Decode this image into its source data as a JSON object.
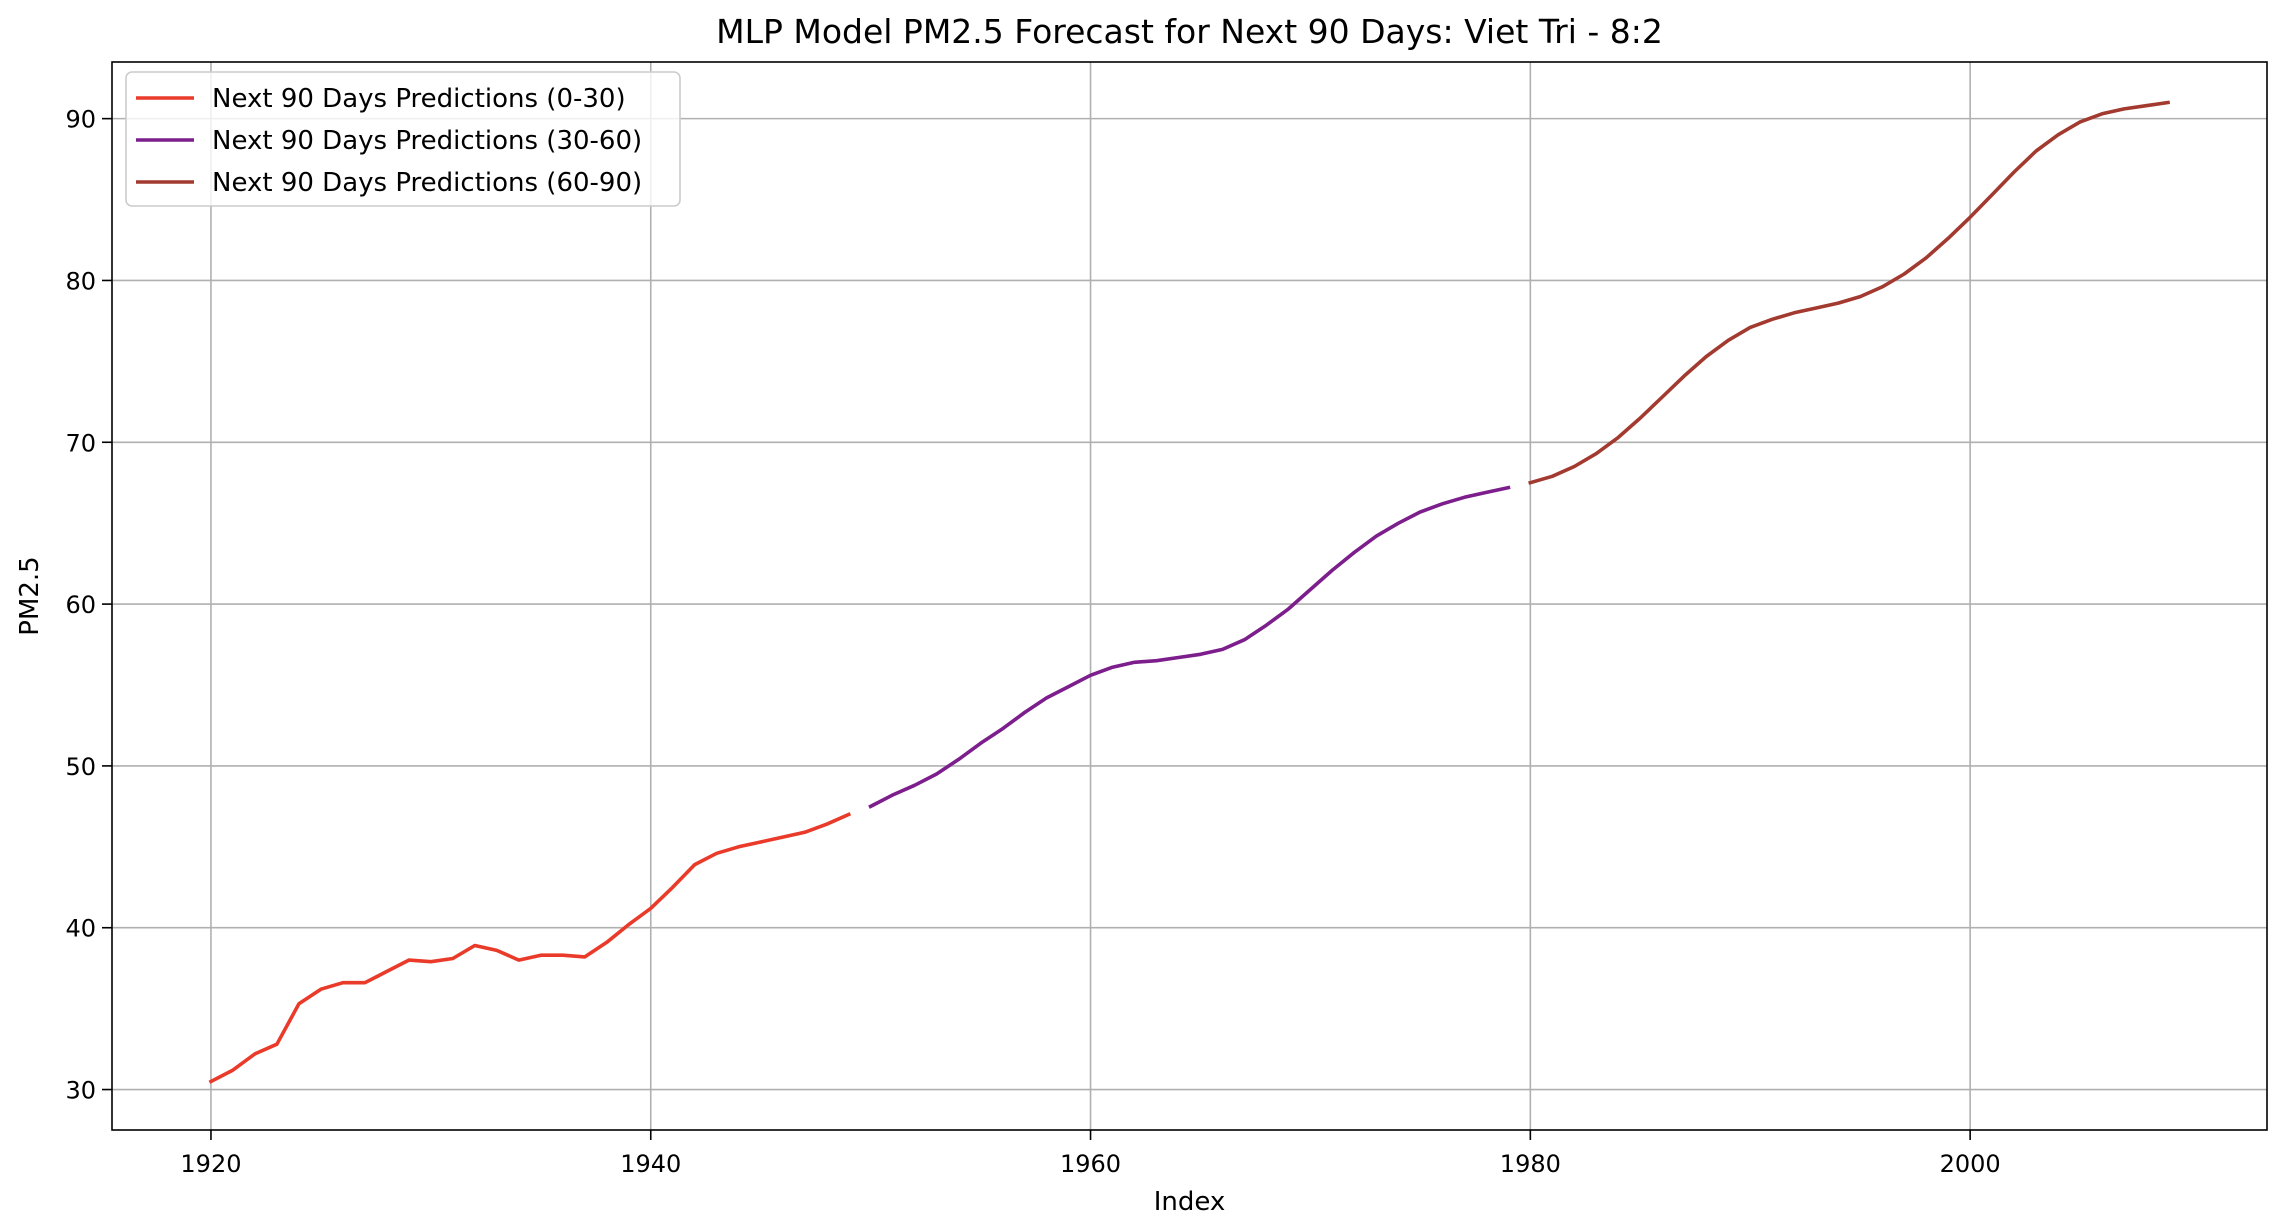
{
  "chart_data": {
    "type": "line",
    "title": "MLP Model PM2.5 Forecast for Next 90 Days: Viet Tri - 8:2",
    "xlabel": "Index",
    "ylabel": "PM2.5",
    "xlim": [
      1915.5,
      2013.5
    ],
    "ylim": [
      27.5,
      93.5
    ],
    "xticks": [
      1920,
      1940,
      1960,
      1980,
      2000
    ],
    "yticks": [
      30,
      40,
      50,
      60,
      70,
      80,
      90
    ],
    "grid": true,
    "legend_position": "top-left",
    "series": [
      {
        "name": "Next 90 Days Predictions (0-30)",
        "color": "#ea3a2a",
        "x": [
          1920,
          1921,
          1922,
          1923,
          1924,
          1925,
          1926,
          1927,
          1928,
          1929,
          1930,
          1931,
          1932,
          1933,
          1934,
          1935,
          1936,
          1937,
          1938,
          1939,
          1940,
          1941,
          1942,
          1943,
          1944,
          1945,
          1946,
          1947,
          1948,
          1949
        ],
        "y": [
          30.5,
          31.2,
          32.2,
          32.8,
          35.3,
          36.2,
          36.6,
          36.6,
          37.3,
          38.0,
          37.9,
          38.1,
          38.9,
          38.6,
          38.0,
          38.3,
          38.3,
          38.2,
          39.1,
          40.2,
          41.2,
          42.5,
          43.9,
          44.6,
          45.0,
          45.3,
          45.6,
          45.9,
          46.4,
          47.0
        ]
      },
      {
        "name": "Next 90 Days Predictions (30-60)",
        "color": "#7c1e8c",
        "x": [
          1950,
          1951,
          1952,
          1953,
          1954,
          1955,
          1956,
          1957,
          1958,
          1959,
          1960,
          1961,
          1962,
          1963,
          1964,
          1965,
          1966,
          1967,
          1968,
          1969,
          1970,
          1971,
          1972,
          1973,
          1974,
          1975,
          1976,
          1977,
          1978,
          1979
        ],
        "y": [
          47.5,
          48.2,
          48.8,
          49.5,
          50.4,
          51.4,
          52.3,
          53.3,
          54.2,
          54.9,
          55.6,
          56.1,
          56.4,
          56.5,
          56.7,
          56.9,
          57.2,
          57.8,
          58.7,
          59.7,
          60.9,
          62.1,
          63.2,
          64.2,
          65.0,
          65.7,
          66.2,
          66.6,
          66.9,
          67.2
        ]
      },
      {
        "name": "Next 90 Days Predictions (60-90)",
        "color": "#a33a30",
        "x": [
          1980,
          1981,
          1982,
          1983,
          1984,
          1985,
          1986,
          1987,
          1988,
          1989,
          1990,
          1991,
          1992,
          1993,
          1994,
          1995,
          1996,
          1997,
          1998,
          1999,
          2000,
          2001,
          2002,
          2003,
          2004,
          2005,
          2006,
          2007,
          2008,
          2009
        ],
        "y": [
          67.5,
          67.9,
          68.5,
          69.3,
          70.3,
          71.5,
          72.8,
          74.1,
          75.3,
          76.3,
          77.1,
          77.6,
          78.0,
          78.3,
          78.6,
          79.0,
          79.6,
          80.4,
          81.4,
          82.6,
          83.9,
          85.3,
          86.7,
          88.0,
          89.0,
          89.8,
          90.3,
          90.6,
          90.8,
          91.0
        ]
      }
    ]
  }
}
